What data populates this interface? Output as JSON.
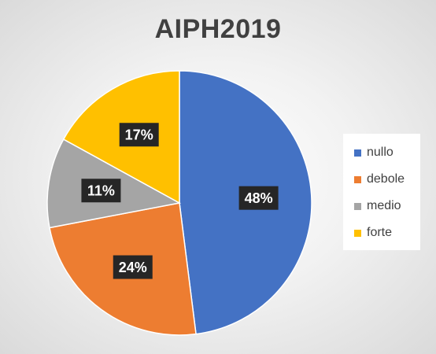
{
  "chart_data": {
    "type": "pie",
    "title": "AIPH2019",
    "categories": [
      "nullo",
      "debole",
      "medio",
      "forte"
    ],
    "values": [
      48,
      24,
      11,
      17
    ],
    "labels": [
      "48%",
      "24%",
      "11%",
      "17%"
    ],
    "colors": [
      "#4472C4",
      "#ED7D31",
      "#A5A5A5",
      "#FFC000"
    ],
    "start_angle_deg": 0,
    "direction": "clockwise",
    "legend_position": "right"
  }
}
